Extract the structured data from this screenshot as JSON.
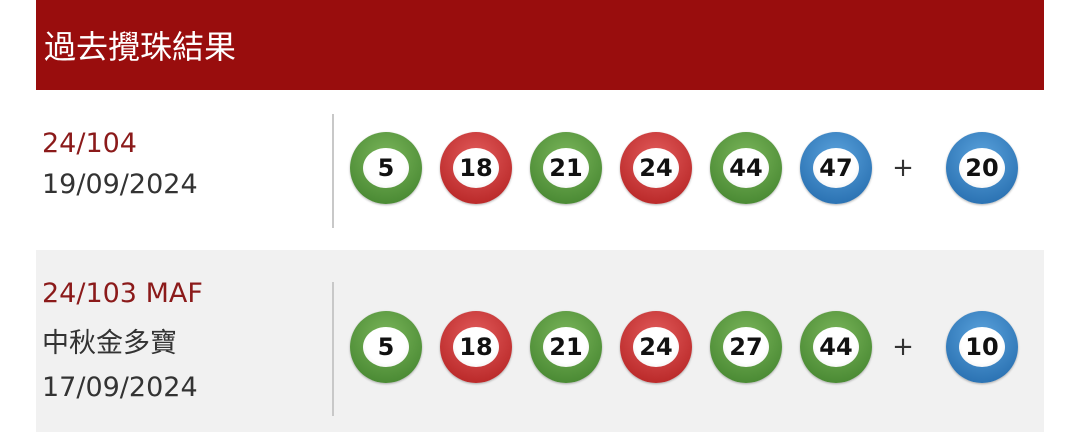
{
  "header": {
    "title": "過去攪珠結果"
  },
  "results": [
    {
      "draw": "24/104",
      "lines": [
        "19/09/2024"
      ],
      "balls": [
        {
          "n": "5",
          "c": "green"
        },
        {
          "n": "18",
          "c": "red"
        },
        {
          "n": "21",
          "c": "green"
        },
        {
          "n": "24",
          "c": "red"
        },
        {
          "n": "44",
          "c": "green"
        },
        {
          "n": "47",
          "c": "blue"
        }
      ],
      "plus": "+",
      "extra": {
        "n": "20",
        "c": "blue"
      }
    },
    {
      "draw": "24/103 MAF",
      "lines": [
        "中秋金多寶",
        "17/09/2024"
      ],
      "balls": [
        {
          "n": "5",
          "c": "green"
        },
        {
          "n": "18",
          "c": "red"
        },
        {
          "n": "21",
          "c": "green"
        },
        {
          "n": "24",
          "c": "red"
        },
        {
          "n": "27",
          "c": "green"
        },
        {
          "n": "44",
          "c": "green"
        }
      ],
      "plus": "+",
      "extra": {
        "n": "10",
        "c": "blue"
      }
    }
  ],
  "colors": {
    "header": "#990d0d",
    "green": "#4f9236",
    "red": "#c52a2a",
    "blue": "#2f7cc0"
  }
}
